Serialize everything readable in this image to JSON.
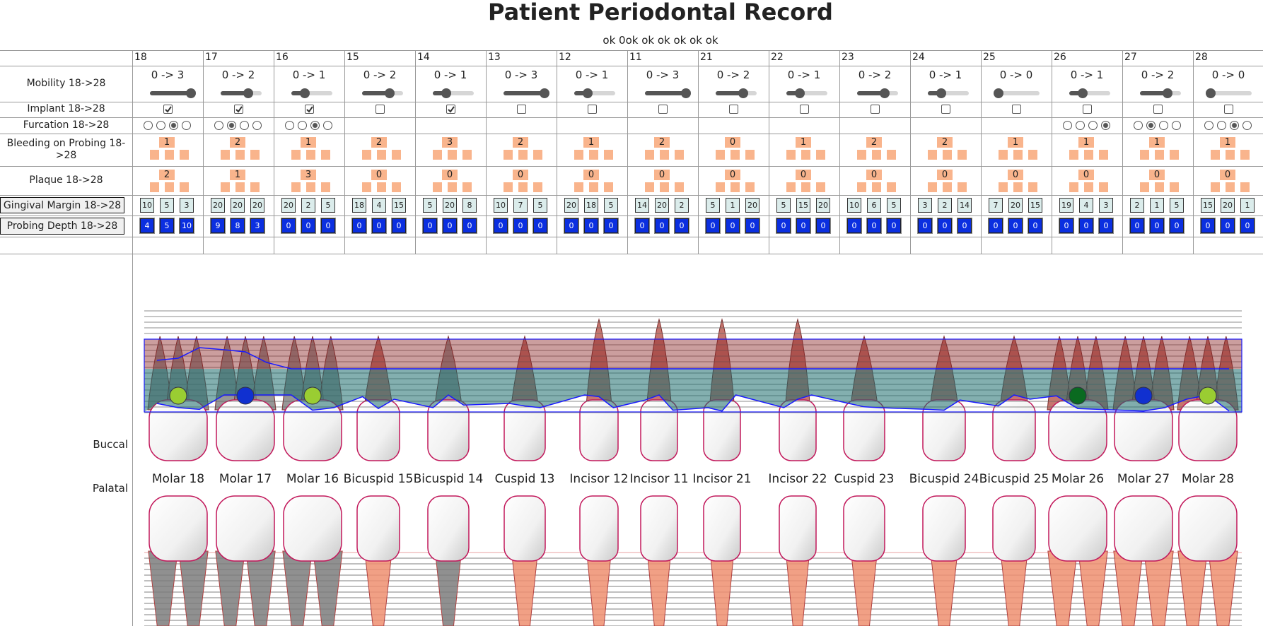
{
  "title": "Patient Periodontal Record",
  "status": "ok 0ok ok ok ok ok ok",
  "teeth": [
    "18",
    "17",
    "16",
    "15",
    "14",
    "13",
    "12",
    "11",
    "21",
    "22",
    "23",
    "24",
    "25",
    "26",
    "27",
    "28"
  ],
  "row_labels": {
    "mobility": "Mobility 18->28",
    "implant": "Implant 18->28",
    "furcation": "Furcation 18->28",
    "bleeding": "Bleeding on Probing 18->28",
    "plaque": "Plaque 18->28",
    "gingival_margin": "Gingival Margin 18->28",
    "probing_depth": "Probing Depth 18->28"
  },
  "mobility_scale": [
    0,
    3
  ],
  "mobility": [
    {
      "label": "0 -> 3",
      "value": 3
    },
    {
      "label": "0 -> 2",
      "value": 2
    },
    {
      "label": "0 -> 1",
      "value": 1
    },
    {
      "label": "0 -> 2",
      "value": 2
    },
    {
      "label": "0 -> 1",
      "value": 1
    },
    {
      "label": "0 -> 3",
      "value": 3
    },
    {
      "label": "0 -> 1",
      "value": 1
    },
    {
      "label": "0 -> 3",
      "value": 3
    },
    {
      "label": "0 -> 2",
      "value": 2
    },
    {
      "label": "0 -> 1",
      "value": 1
    },
    {
      "label": "0 -> 2",
      "value": 2
    },
    {
      "label": "0 -> 1",
      "value": 1
    },
    {
      "label": "0 -> 0",
      "value": 0
    },
    {
      "label": "0 -> 1",
      "value": 1
    },
    {
      "label": "0 -> 2",
      "value": 2
    },
    {
      "label": "0 -> 0",
      "value": 0
    }
  ],
  "implant": [
    true,
    true,
    true,
    false,
    true,
    false,
    false,
    false,
    false,
    false,
    false,
    false,
    false,
    false,
    false,
    false
  ],
  "furcation": [
    2,
    1,
    2,
    null,
    null,
    null,
    null,
    null,
    null,
    null,
    null,
    null,
    null,
    3,
    1,
    2
  ],
  "bleeding": [
    1,
    2,
    1,
    2,
    3,
    2,
    1,
    2,
    0,
    1,
    2,
    2,
    1,
    1,
    1,
    1
  ],
  "plaque": [
    2,
    1,
    3,
    0,
    0,
    0,
    0,
    0,
    0,
    0,
    0,
    0,
    0,
    0,
    0,
    0
  ],
  "gingival_margin": [
    [
      10,
      5,
      3
    ],
    [
      20,
      20,
      20
    ],
    [
      20,
      2,
      5
    ],
    [
      18,
      4,
      15
    ],
    [
      5,
      20,
      8
    ],
    [
      10,
      7,
      5
    ],
    [
      20,
      18,
      5
    ],
    [
      14,
      20,
      2
    ],
    [
      5,
      1,
      20
    ],
    [
      5,
      15,
      20
    ],
    [
      10,
      6,
      5
    ],
    [
      3,
      2,
      14
    ],
    [
      7,
      20,
      15
    ],
    [
      19,
      4,
      3
    ],
    [
      2,
      1,
      5
    ],
    [
      15,
      20,
      1
    ]
  ],
  "probing_depth": [
    [
      4,
      5,
      10
    ],
    [
      9,
      8,
      3
    ],
    [
      0,
      0,
      0
    ],
    [
      0,
      0,
      0
    ],
    [
      0,
      0,
      0
    ],
    [
      0,
      0,
      0
    ],
    [
      0,
      0,
      0
    ],
    [
      0,
      0,
      0
    ],
    [
      0,
      0,
      0
    ],
    [
      0,
      0,
      0
    ],
    [
      0,
      0,
      0
    ],
    [
      0,
      0,
      0
    ],
    [
      0,
      0,
      0
    ],
    [
      0,
      0,
      0
    ],
    [
      0,
      0,
      0
    ],
    [
      0,
      0,
      0
    ]
  ],
  "tooth_names": [
    "Molar 18",
    "Molar 17",
    "Molar 16",
    "Bicuspid 15",
    "Bicuspid 14",
    "Cuspid 13",
    "Incisor 12",
    "Incisor 11",
    "Incisor 21",
    "Incisor 22",
    "Cuspid 23",
    "Bicuspid 24",
    "Bicuspid 25",
    "Molar 26",
    "Molar 27",
    "Molar 28"
  ],
  "sides": {
    "buccal": "Buccal",
    "palatal": "Palatal"
  }
}
